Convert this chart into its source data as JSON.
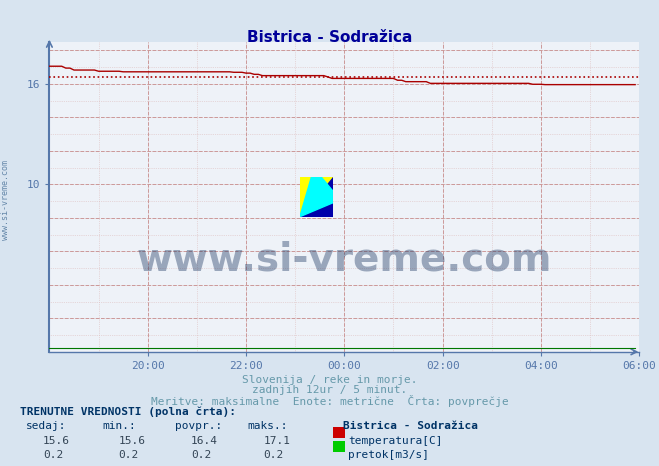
{
  "title": "Bistrica - Sodražica",
  "subtitle1": "Slovenija / reke in morje.",
  "subtitle2": "zadnjih 12ur / 5 minut.",
  "subtitle3": "Meritve: maksimalne  Enote: metrične  Črta: povprečje",
  "ylim": [
    0,
    18.5
  ],
  "xlim": [
    0,
    144
  ],
  "background_color": "#d8e4f0",
  "plot_bg_color": "#eef2f8",
  "temp_line_color": "#aa0000",
  "temp_avg_color": "#aa0000",
  "flow_line_color": "#007700",
  "axis_color": "#5577aa",
  "title_color": "#000099",
  "tick_color": "#5577aa",
  "subtitle_color": "#6699aa",
  "label_color": "#003366",
  "value_color": "#334455",
  "watermark_color": "#1a3560",
  "left_label_color": "#6688aa",
  "grid_major_color": "#cc9999",
  "grid_minor_color": "#ddbbbb",
  "temp_avg": 16.4,
  "temp_max": 17.1,
  "temp_current": 15.6,
  "temp_min": 15.6,
  "flow_current": 0.2,
  "flow_min": 0.2,
  "flow_avg": 0.2,
  "flow_max": 0.2,
  "n_points": 144,
  "watermark": "www.si-vreme.com",
  "left_watermark": "www.si-vreme.com",
  "bottom_label1": "TRENUTNE VREDNOSTI (polna črta):",
  "col1": "sedaj:",
  "col2": "min.:",
  "col3": "povpr.:",
  "col4": "maks.:",
  "col5": "Bistrica - Sodražica",
  "legend_temp": "temperatura[C]",
  "legend_flow": "pretok[m3/s]",
  "temp_box_color": "#cc0000",
  "flow_box_color": "#00cc00"
}
